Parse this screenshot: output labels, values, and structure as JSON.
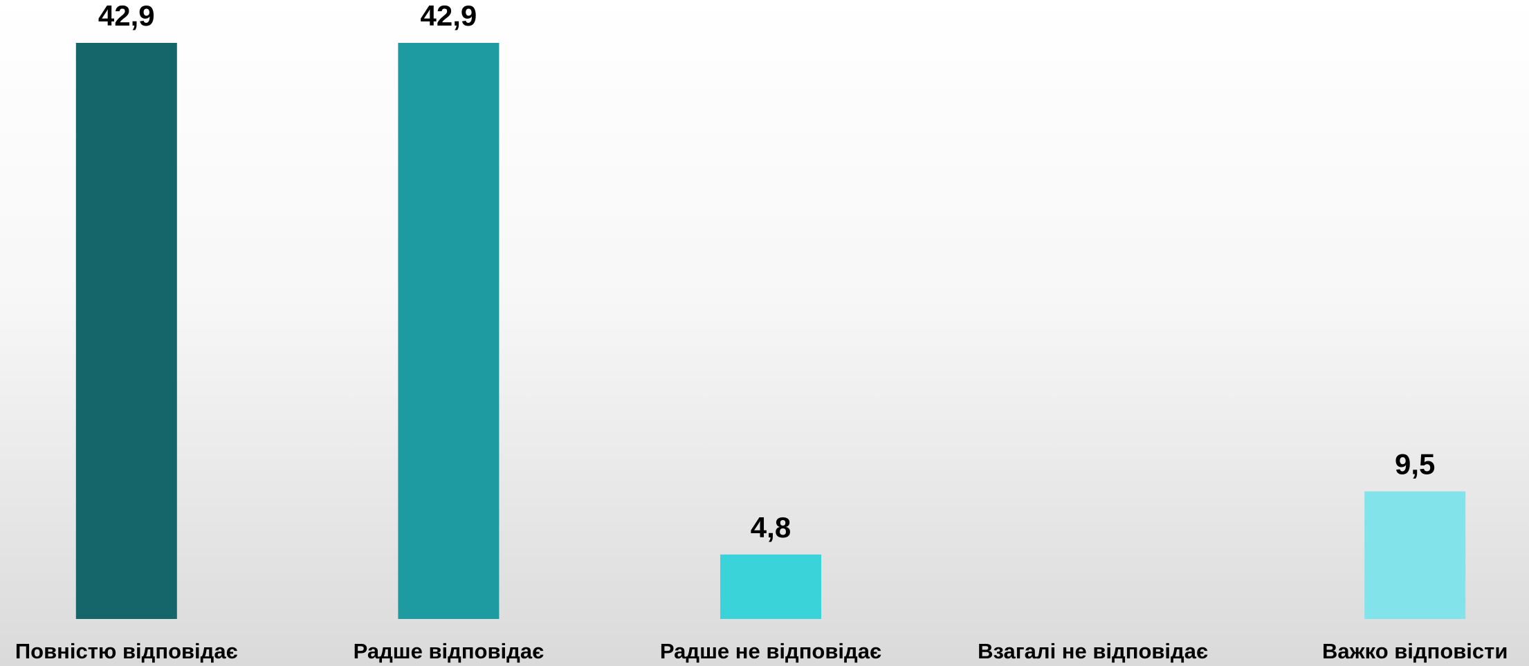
{
  "chart_data": {
    "type": "bar",
    "categories": [
      "Повністю відповідає",
      "Радше відповідає",
      "Радше не відповідає",
      "Взагалі не відповідає",
      "Важко відповісти"
    ],
    "values": [
      42.9,
      42.9,
      4.8,
      null,
      9.5
    ],
    "value_labels": [
      "42,9",
      "42,9",
      "4,8",
      null,
      "9,5"
    ],
    "colors": [
      "#14666a",
      "#1e9ba0",
      "#3ad3da",
      null,
      "#83e3ea"
    ]
  }
}
